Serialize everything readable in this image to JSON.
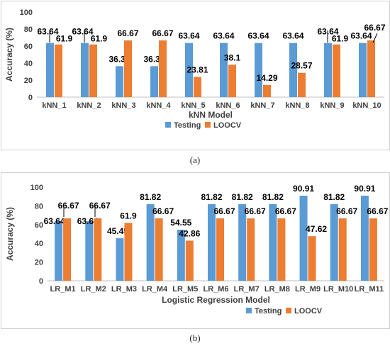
{
  "figure": {
    "caption_a": "(a)",
    "caption_b": "(b)"
  },
  "chart_data": [
    {
      "type": "bar",
      "title": "",
      "ylabel": "Accuracy (%)",
      "xlabel": "kNN Model",
      "ylim": [
        0,
        100
      ],
      "yticks": [
        0,
        20,
        40,
        60,
        80,
        100
      ],
      "grid": false,
      "legend_position": "bottom",
      "categories": [
        "kNN_1",
        "kNN_2",
        "kNN_3",
        "kNN_4",
        "kNN_5",
        "kNN_6",
        "kNN_7",
        "kNN_8",
        "kNN_9",
        "kNN_10"
      ],
      "series": [
        {
          "name": "Testing",
          "color": "#5b9bd5",
          "values": [
            63.64,
            63.64,
            36.36,
            36.36,
            63.64,
            63.64,
            63.64,
            63.64,
            63.64,
            63.64
          ]
        },
        {
          "name": "LOOCV",
          "color": "#ed7d31",
          "values": [
            61.9,
            61.9,
            66.67,
            66.67,
            23.81,
            38.1,
            14.29,
            28.57,
            61.9,
            66.67
          ]
        }
      ]
    },
    {
      "type": "bar",
      "title": "",
      "ylabel": "Accuracy (%)",
      "xlabel": "Logistic Regression Model",
      "ylim": [
        0,
        100
      ],
      "yticks": [
        0,
        20,
        40,
        60,
        80,
        100
      ],
      "grid": false,
      "legend_position": "bottom",
      "categories": [
        "LR_M1",
        "LR_M2",
        "LR_M3",
        "LR_M4",
        "LR_M5",
        "LR_M6",
        "LR_M7",
        "LR_M8",
        "LR_M9",
        "LR_M10",
        "LR_M11"
      ],
      "series": [
        {
          "name": "Testing",
          "color": "#5b9bd5",
          "values": [
            63.64,
            63.64,
            45.45,
            81.82,
            54.55,
            81.82,
            81.82,
            81.82,
            90.91,
            81.82,
            90.91
          ]
        },
        {
          "name": "LOOCV",
          "color": "#ed7d31",
          "values": [
            66.67,
            66.67,
            61.9,
            66.67,
            42.86,
            66.67,
            66.67,
            66.67,
            47.62,
            66.67,
            66.67
          ]
        }
      ]
    }
  ]
}
